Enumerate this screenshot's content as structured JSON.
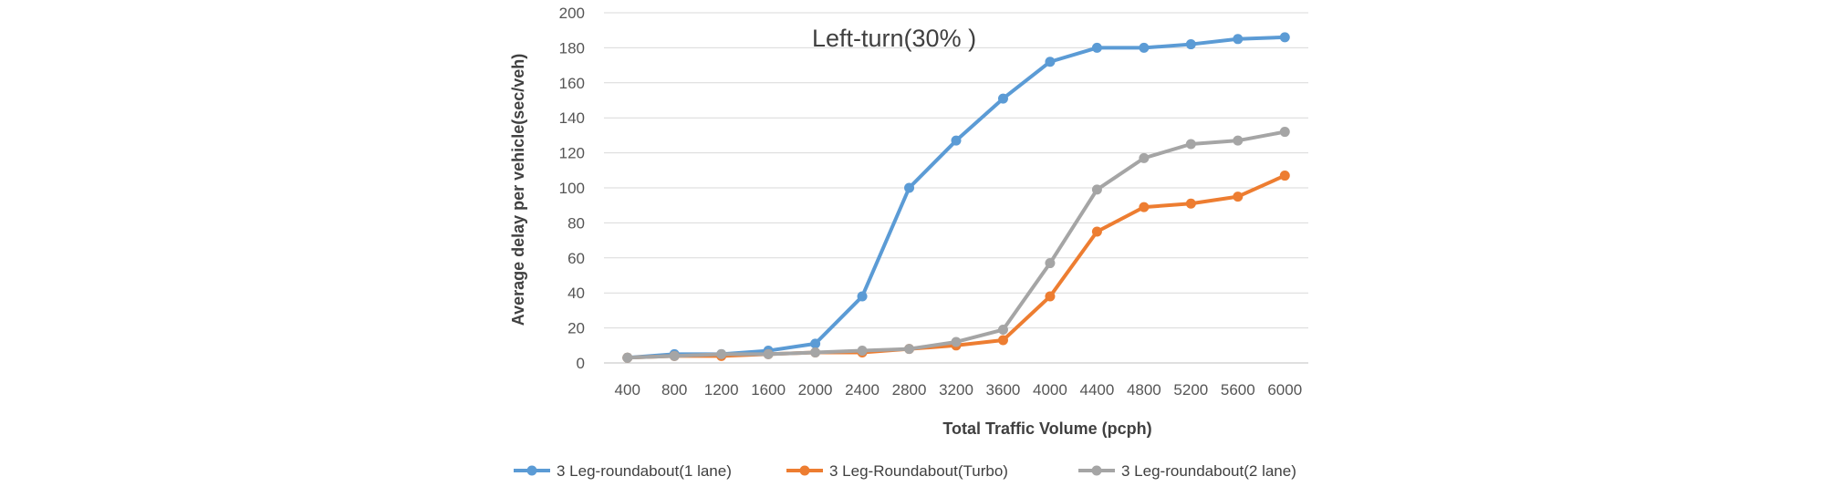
{
  "chart_data": {
    "type": "line",
    "title": "",
    "annotation": "Left-turn(30% )",
    "xlabel": "Total Traffic Volume (pcph)",
    "ylabel": "Average delay per vehicle(sec/veh)",
    "categories": [
      "400",
      "800",
      "1200",
      "1600",
      "2000",
      "2400",
      "2800",
      "3200",
      "3600",
      "4000",
      "4400",
      "4800",
      "5200",
      "5600",
      "6000"
    ],
    "ylim": [
      0,
      200
    ],
    "yticks": [
      0,
      20,
      40,
      60,
      80,
      100,
      120,
      140,
      160,
      180,
      200
    ],
    "grid": true,
    "legend_position": "bottom",
    "series": [
      {
        "name": "3 Leg-roundabout(1 lane)",
        "color": "#5b9bd5",
        "values": [
          3,
          5,
          5,
          7,
          11,
          38,
          100,
          127,
          151,
          172,
          180,
          180,
          182,
          185,
          186
        ]
      },
      {
        "name": "3 Leg-Roundabout(Turbo)",
        "color": "#ed7d31",
        "values": [
          3,
          4,
          4,
          5,
          6,
          6,
          8,
          10,
          13,
          38,
          75,
          89,
          91,
          95,
          107
        ]
      },
      {
        "name": "3 Leg-roundabout(2 lane)",
        "color": "#a5a5a5",
        "values": [
          3,
          4,
          5,
          5,
          6,
          7,
          8,
          12,
          19,
          57,
          99,
          117,
          125,
          127,
          132
        ]
      }
    ]
  }
}
